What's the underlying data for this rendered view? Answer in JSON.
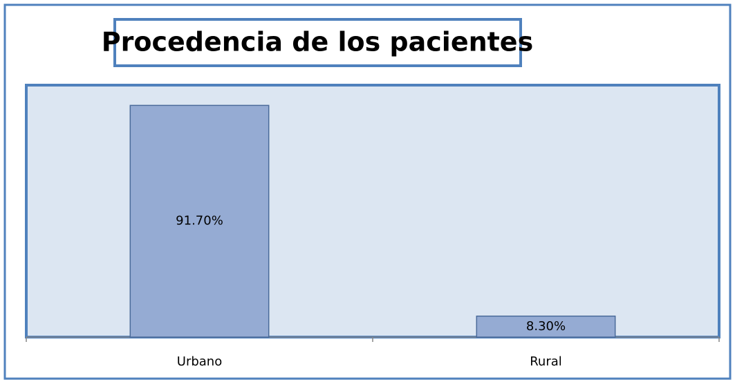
{
  "chart_data": {
    "type": "bar",
    "title": "Procedencia de los pacientes",
    "categories": [
      "Urbano",
      "Rural"
    ],
    "values": [
      91.7,
      8.3
    ],
    "value_labels": [
      "91.70%",
      "8.30%"
    ],
    "color": "#95abd3",
    "ylim": [
      0,
      100
    ],
    "grid": false
  }
}
